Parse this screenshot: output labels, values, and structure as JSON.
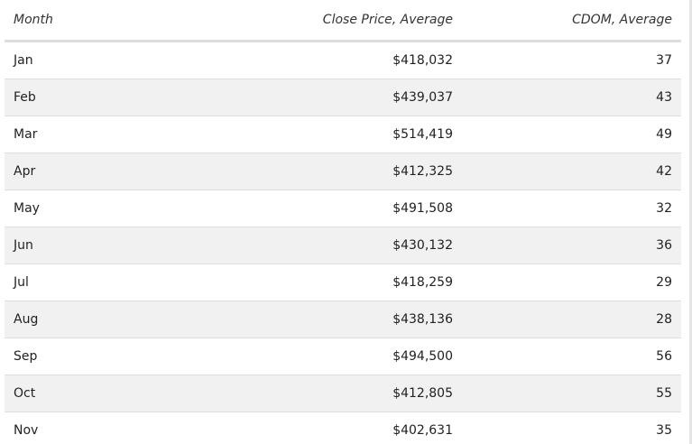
{
  "table": {
    "columns": [
      "Month",
      "Close Price, Average",
      "CDOM, Average"
    ],
    "rows": [
      {
        "month": "Jan",
        "price": "$418,032",
        "cdom": "37"
      },
      {
        "month": "Feb",
        "price": "$439,037",
        "cdom": "43"
      },
      {
        "month": "Mar",
        "price": "$514,419",
        "cdom": "49"
      },
      {
        "month": "Apr",
        "price": "$412,325",
        "cdom": "42"
      },
      {
        "month": "May",
        "price": "$491,508",
        "cdom": "32"
      },
      {
        "month": "Jun",
        "price": "$430,132",
        "cdom": "36"
      },
      {
        "month": "Jul",
        "price": "$418,259",
        "cdom": "29"
      },
      {
        "month": "Aug",
        "price": "$438,136",
        "cdom": "28"
      },
      {
        "month": "Sep",
        "price": "$494,500",
        "cdom": "56"
      },
      {
        "month": "Oct",
        "price": "$412,805",
        "cdom": "55"
      },
      {
        "month": "Nov",
        "price": "$402,631",
        "cdom": "35"
      }
    ]
  }
}
